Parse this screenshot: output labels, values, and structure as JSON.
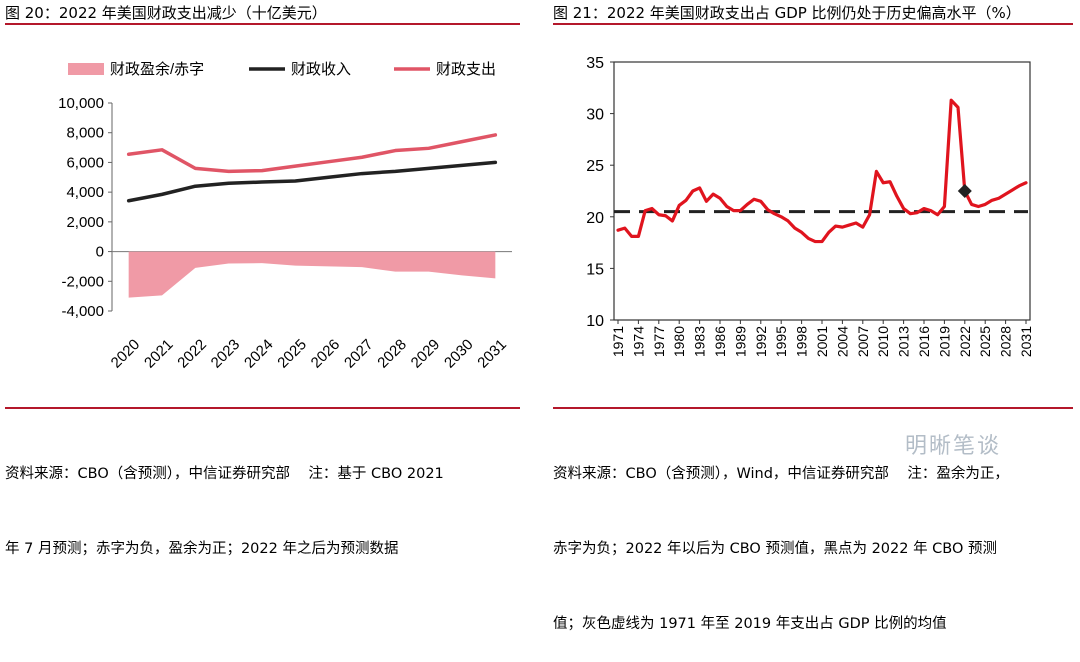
{
  "figures": [
    {
      "title": "图 20：2022 年美国财政支出减少（十亿美元）",
      "source_lines": [
        "资料来源：CBO（含预测），中信证券研究部    注：基于 CBO 2021",
        "年 7 月预测；赤字为负，盈余为正；2022 年之后为预测数据"
      ]
    },
    {
      "title": "图 21：2022 年美国财政支出占 GDP 比例仍处于历史偏高水平（%）",
      "source_lines": [
        "资料来源：CBO（含预测），Wind，中信证券研究部    注：盈余为正，",
        "赤字为负；2022 年以后为 CBO 预测值，黑点为 2022 年 CBO 预测",
        "值；灰色虚线为 1971 年至 2019 年支出占 GDP 比例的均值"
      ]
    }
  ],
  "watermark": "明晰笔谈",
  "colors": {
    "rule": "#b4182b",
    "pink_area": "#f09aa6",
    "pink_line": "#e05566",
    "black": "#222222",
    "red": "#e0141e"
  },
  "chart_data": [
    {
      "type": "line",
      "title": "2022 年美国财政支出减少（十亿美元）",
      "categories": [
        "2020",
        "2021",
        "2022",
        "2023",
        "2024",
        "2025",
        "2026",
        "2027",
        "2028",
        "2029",
        "2030",
        "2031"
      ],
      "series": [
        {
          "name": "财政盈余/赤字",
          "kind": "area",
          "values": [
            -3100,
            -2950,
            -1100,
            -800,
            -780,
            -950,
            -1000,
            -1050,
            -1350,
            -1350,
            -1600,
            -1800
          ]
        },
        {
          "name": "财政收入",
          "kind": "line",
          "values": [
            3420,
            3850,
            4400,
            4600,
            4680,
            4750,
            5000,
            5250,
            5400,
            5600,
            5800,
            6000
          ]
        },
        {
          "name": "财政支出",
          "kind": "line",
          "values": [
            6550,
            6850,
            5600,
            5400,
            5450,
            5750,
            6050,
            6350,
            6800,
            6950,
            7400,
            7850
          ]
        }
      ],
      "ylim": [
        -4000,
        10000
      ],
      "yticks": [
        -4000,
        -2000,
        0,
        2000,
        4000,
        6000,
        8000,
        10000
      ],
      "ytick_labels": [
        "-4,000",
        "-2,000",
        "0",
        "2,000",
        "4,000",
        "6,000",
        "8,000",
        "10,000"
      ],
      "legend": "top"
    },
    {
      "type": "line",
      "title": "2022 年美国财政支出占 GDP 比例仍处于历史偏高水平（%）",
      "x": [
        1971,
        1972,
        1973,
        1974,
        1975,
        1976,
        1977,
        1978,
        1979,
        1980,
        1981,
        1982,
        1983,
        1984,
        1985,
        1986,
        1987,
        1988,
        1989,
        1990,
        1991,
        1992,
        1993,
        1994,
        1995,
        1996,
        1997,
        1998,
        1999,
        2000,
        2001,
        2002,
        2003,
        2004,
        2005,
        2006,
        2007,
        2008,
        2009,
        2010,
        2011,
        2012,
        2013,
        2014,
        2015,
        2016,
        2017,
        2018,
        2019,
        2020,
        2021,
        2022,
        2023,
        2024,
        2025,
        2026,
        2027,
        2028,
        2029,
        2030,
        2031
      ],
      "series": [
        {
          "name": "财政支出占 GDP 比例",
          "values": [
            18.7,
            18.9,
            18.1,
            18.1,
            20.6,
            20.8,
            20.2,
            20.1,
            19.6,
            21.1,
            21.6,
            22.5,
            22.8,
            21.5,
            22.2,
            21.8,
            21.0,
            20.6,
            20.6,
            21.2,
            21.7,
            21.5,
            20.7,
            20.3,
            20.0,
            19.6,
            18.9,
            18.5,
            17.9,
            17.6,
            17.6,
            18.5,
            19.1,
            19.0,
            19.2,
            19.4,
            19.0,
            20.2,
            24.4,
            23.3,
            23.4,
            22.0,
            20.8,
            20.3,
            20.4,
            20.8,
            20.6,
            20.2,
            21.0,
            31.3,
            30.6,
            22.5,
            21.2,
            21.0,
            21.2,
            21.6,
            21.8,
            22.2,
            22.6,
            23.0,
            23.3
          ]
        }
      ],
      "mean_line": 20.5,
      "marker": {
        "x": 2022,
        "y": 22.5
      },
      "ylim": [
        10,
        35
      ],
      "yticks": [
        10,
        15,
        20,
        25,
        30,
        35
      ],
      "xtick_labels": [
        "1971",
        "1974",
        "1977",
        "1980",
        "1983",
        "1986",
        "1989",
        "1992",
        "1995",
        "1998",
        "2001",
        "2004",
        "2007",
        "2010",
        "2013",
        "2016",
        "2019",
        "2022",
        "2025",
        "2028",
        "2031"
      ]
    }
  ]
}
